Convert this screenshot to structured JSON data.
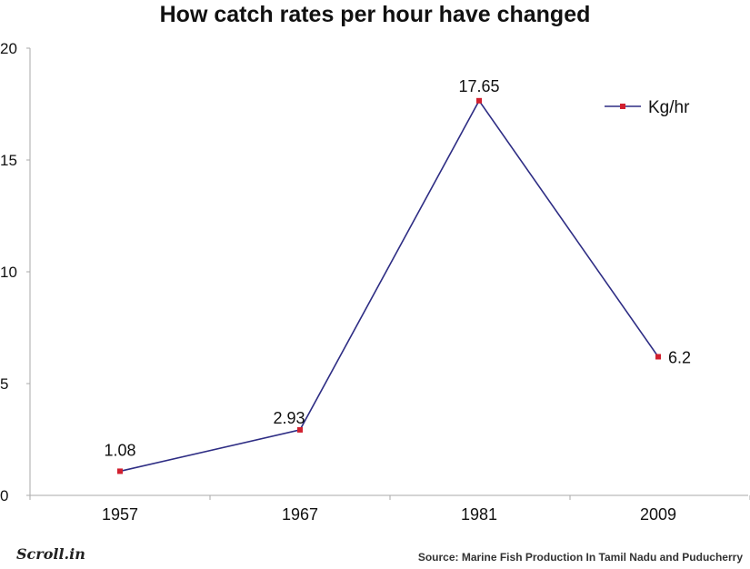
{
  "chart_data": {
    "type": "line",
    "title": "How catch rates per hour have changed",
    "categories": [
      "1957",
      "1967",
      "1981",
      "2009"
    ],
    "series": [
      {
        "name": "Kg/hr",
        "values": [
          1.08,
          2.93,
          17.65,
          6.2
        ],
        "labels": [
          "1.08",
          "2.93",
          "17.65",
          "6.2"
        ]
      }
    ],
    "ylim": [
      0,
      20
    ],
    "yticks": [
      0,
      5,
      10,
      15,
      20
    ],
    "ytick_labels": [
      "0",
      "5",
      "10",
      "15",
      "20"
    ],
    "grid": false,
    "legend": "top-right",
    "colors": {
      "line": "#2e2d84",
      "marker": "#d1202f",
      "axis": "#aaaaaa"
    }
  },
  "footer": {
    "brand": "Scroll.in",
    "source": "Source: Marine Fish Production In Tamil Nadu and Puducherry"
  }
}
